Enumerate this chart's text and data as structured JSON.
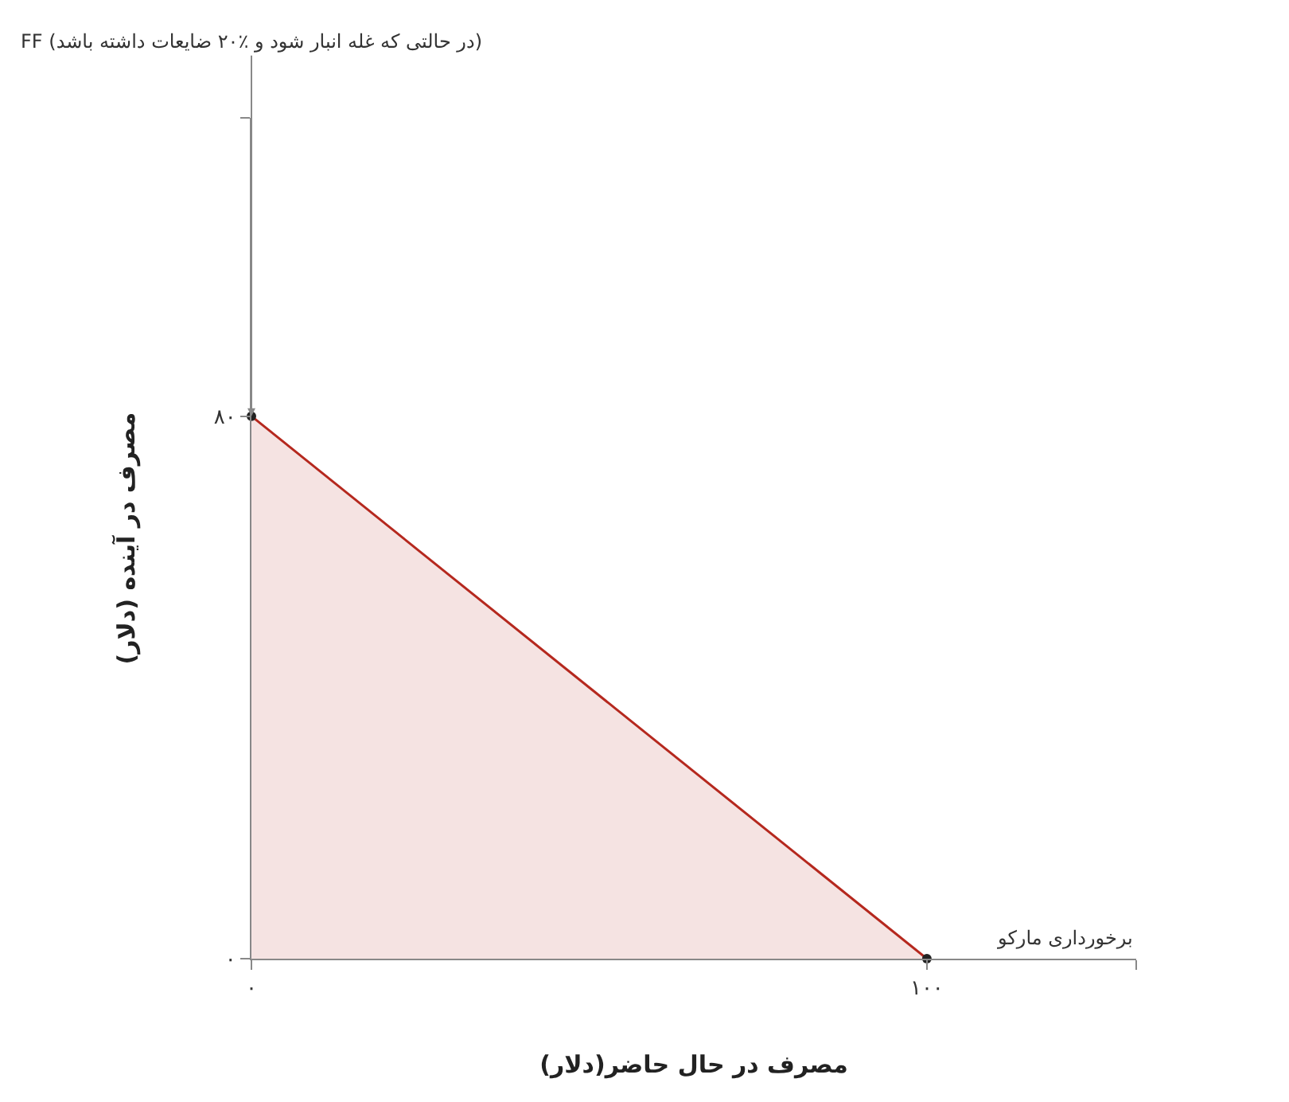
{
  "chart_data": {
    "type": "area",
    "xlabel": "مصرف در حال حاضر(دلار)",
    "ylabel": "مصرف در آینده (دلار)",
    "x": [
      0,
      100
    ],
    "series": [
      {
        "color": "#b5281e",
        "values": [
          80,
          0
        ]
      }
    ],
    "xlim": [
      0,
      131
    ],
    "ylim": [
      0,
      124
    ],
    "xticks": [
      {
        "value": 0,
        "label": "۰"
      },
      {
        "value": 100,
        "label": "۱۰۰"
      },
      {
        "value": 131,
        "label": null
      }
    ],
    "yticks": [
      {
        "value": 0,
        "label": "۰"
      },
      {
        "value": 80,
        "label": "۸۰"
      },
      {
        "value": 124,
        "label": null
      }
    ],
    "marker": "circle",
    "annotations": [
      {
        "text": "FF (در حالتی که غله انبار شود و ٪۲۰ ضایعات داشته باشد)",
        "x": 0,
        "y": 80
      },
      "برخورداری مارکو"
    ]
  }
}
